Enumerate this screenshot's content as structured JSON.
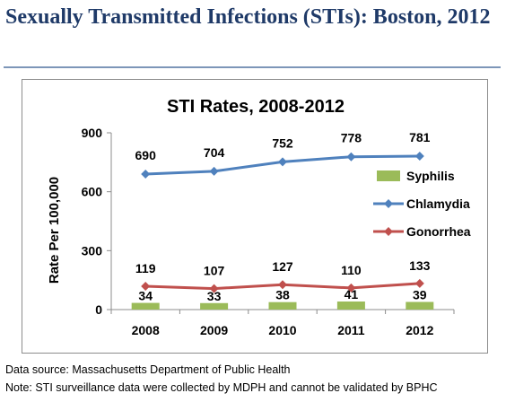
{
  "page": {
    "title": "Sexually Transmitted Infections (STIs): Boston, 2012",
    "footnotes": {
      "source": "Data source: Massachusetts Department of Public Health",
      "note": "Note: STI surveillance data were collected by MDPH and cannot be validated by BPHC"
    }
  },
  "chart_data": {
    "type": "bar+line",
    "title": "STI Rates, 2008-2012",
    "xlabel": "",
    "ylabel": "Rate Per 100,000",
    "ylim": [
      0,
      900
    ],
    "yticks": [
      0,
      300,
      600,
      900
    ],
    "categories": [
      "2008",
      "2009",
      "2010",
      "2011",
      "2012"
    ],
    "grid": false,
    "legend_position": "right",
    "series": [
      {
        "name": "Syphilis",
        "type": "bar",
        "color": "#9bbb59",
        "values": [
          34,
          33,
          38,
          41,
          39
        ]
      },
      {
        "name": "Chlamydia",
        "type": "line",
        "marker": "diamond",
        "color": "#4f81bd",
        "values": [
          690,
          704,
          752,
          778,
          781
        ]
      },
      {
        "name": "Gonorrhea",
        "type": "line",
        "marker": "diamond",
        "color": "#c0504d",
        "values": [
          119,
          107,
          127,
          110,
          133
        ]
      }
    ]
  }
}
